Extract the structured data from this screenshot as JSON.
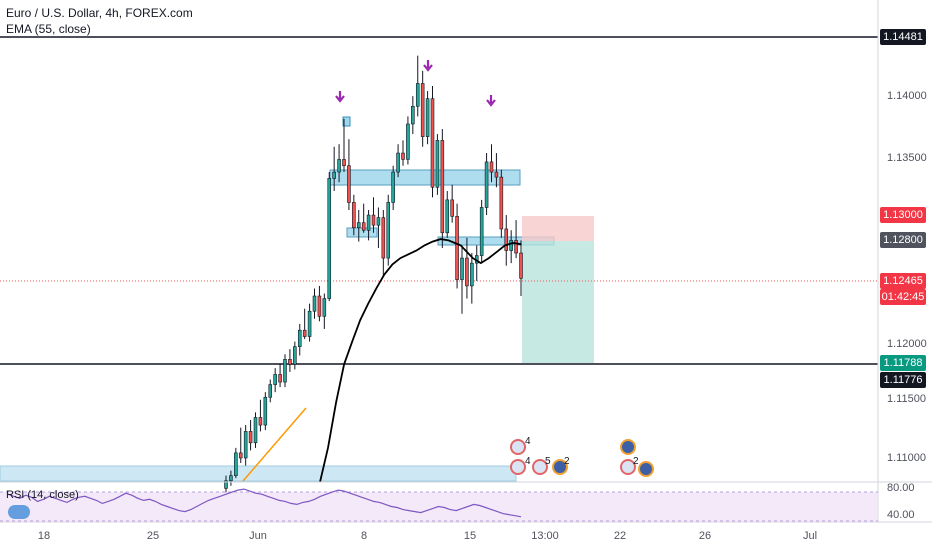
{
  "header": {
    "title": "Euro / U.S. Dollar, 4h, FOREX.com",
    "indicator": "EMA (55, close)"
  },
  "rsi": {
    "label": "RSI (14, close)",
    "axis": [
      "80.00",
      "40.00"
    ],
    "values": [
      62,
      60,
      58,
      61,
      59,
      55,
      57,
      60,
      58,
      56,
      54,
      57,
      59,
      60,
      58,
      56,
      53,
      55,
      57,
      60,
      63,
      61,
      58,
      56,
      57,
      55,
      52,
      50,
      48,
      46,
      45,
      47,
      50,
      53,
      56,
      58,
      60,
      62,
      64,
      66,
      67,
      65,
      63,
      62,
      60,
      58,
      56,
      55,
      53,
      52,
      54,
      55,
      57,
      60,
      62,
      64,
      66,
      65,
      63,
      61,
      59,
      57,
      55,
      54,
      52,
      50,
      49,
      47,
      46,
      45,
      44,
      46,
      48,
      50,
      49,
      47,
      46,
      48,
      50,
      52,
      51,
      49,
      47,
      45,
      43,
      42,
      41,
      40
    ]
  },
  "price_axis": {
    "ticks": [
      "1.14000",
      "1.13500",
      "1.13000",
      "1.12500",
      "1.12000",
      "1.11500",
      "1.11000"
    ],
    "tags": [
      {
        "text": "1.14481",
        "bg": "#131722",
        "fg": "#ffffff"
      },
      {
        "text": "1.13000",
        "bg": "#f23645",
        "fg": "#ffffff"
      },
      {
        "text": "1.12800",
        "bg": "#50535e",
        "fg": "#ffffff"
      },
      {
        "text": "1.12465",
        "bg": "#f23645",
        "fg": "#ffffff"
      },
      {
        "text": "01:42:45",
        "bg": "#f23645",
        "fg": "#ffffff"
      },
      {
        "text": "1.11788",
        "bg": "#089981",
        "fg": "#ffffff"
      },
      {
        "text": "1.11776",
        "bg": "#131722",
        "fg": "#ffffff"
      }
    ]
  },
  "time_axis": {
    "ticks": [
      "18",
      "25",
      "Jun",
      "8",
      "15",
      "13:00",
      "22",
      "26",
      "Jul"
    ]
  },
  "events": {
    "counts": [
      "4",
      "4",
      "5",
      "2",
      "2"
    ]
  },
  "colors": {
    "up": "#26a69a",
    "down": "#ef5350",
    "zone": "#9fd8ec",
    "ema": "#000000",
    "arrow": "#9c27b0",
    "trend": "#ff9800"
  },
  "chart_data": {
    "type": "candlestick",
    "title": "Euro / U.S. Dollar, 4h, FOREX.com",
    "ylim": [
      1.1085,
      1.1466
    ],
    "horizontal_levels": [
      1.14481,
      1.11776
    ],
    "current_price": 1.12465,
    "short_position": {
      "entry": 1.128,
      "stop": 1.13,
      "target": 1.11788
    },
    "ema": [
      [
        0.0,
        1.1085
      ],
      [
        0.04,
        1.1112
      ],
      [
        0.08,
        1.1148
      ],
      [
        0.12,
        1.1178
      ],
      [
        0.16,
        1.1196
      ],
      [
        0.2,
        1.1213
      ],
      [
        0.24,
        1.1226
      ],
      [
        0.28,
        1.1238
      ],
      [
        0.32,
        1.1249
      ],
      [
        0.36,
        1.1257
      ],
      [
        0.4,
        1.1262
      ],
      [
        0.44,
        1.1265
      ],
      [
        0.48,
        1.1268
      ],
      [
        0.52,
        1.1272
      ],
      [
        0.56,
        1.1275
      ],
      [
        0.6,
        1.1277
      ],
      [
        0.64,
        1.1276
      ],
      [
        0.7,
        1.1272
      ],
      [
        0.76,
        1.1262
      ],
      [
        0.8,
        1.1258
      ],
      [
        0.84,
        1.1262
      ],
      [
        0.88,
        1.1267
      ],
      [
        0.92,
        1.1272
      ],
      [
        0.96,
        1.1274
      ],
      [
        1.0,
        1.1273
      ]
    ],
    "candles": [
      [
        1.108,
        1.109,
        1.1076,
        1.1086
      ],
      [
        1.1086,
        1.1094,
        1.1082,
        1.109
      ],
      [
        1.109,
        1.1112,
        1.1088,
        1.1108
      ],
      [
        1.1108,
        1.1128,
        1.11,
        1.1104
      ],
      [
        1.1104,
        1.113,
        1.1098,
        1.1125
      ],
      [
        1.1125,
        1.1134,
        1.111,
        1.1116
      ],
      [
        1.1116,
        1.114,
        1.1112,
        1.1136
      ],
      [
        1.1136,
        1.115,
        1.1125,
        1.113
      ],
      [
        1.113,
        1.1156,
        1.1126,
        1.1152
      ],
      [
        1.1152,
        1.1166,
        1.1148,
        1.1162
      ],
      [
        1.1162,
        1.1175,
        1.1156,
        1.117
      ],
      [
        1.117,
        1.1178,
        1.116,
        1.1164
      ],
      [
        1.1164,
        1.1186,
        1.116,
        1.1182
      ],
      [
        1.1182,
        1.119,
        1.1172,
        1.1178
      ],
      [
        1.1178,
        1.1196,
        1.1174,
        1.1192
      ],
      [
        1.1192,
        1.121,
        1.1185,
        1.1205
      ],
      [
        1.1205,
        1.1222,
        1.1198,
        1.12
      ],
      [
        1.12,
        1.1226,
        1.1196,
        1.122
      ],
      [
        1.122,
        1.1238,
        1.1214,
        1.1232
      ],
      [
        1.1232,
        1.124,
        1.1212,
        1.1216
      ],
      [
        1.1216,
        1.1234,
        1.1206,
        1.123
      ],
      [
        1.123,
        1.133,
        1.1228,
        1.1325
      ],
      [
        1.1325,
        1.135,
        1.1315,
        1.133
      ],
      [
        1.133,
        1.1352,
        1.1322,
        1.134
      ],
      [
        1.134,
        1.1372,
        1.133,
        1.1335
      ],
      [
        1.1335,
        1.1356,
        1.13,
        1.1306
      ],
      [
        1.1306,
        1.1312,
        1.128,
        1.1286
      ],
      [
        1.1286,
        1.13,
        1.1275,
        1.129
      ],
      [
        1.129,
        1.1305,
        1.1282,
        1.1284
      ],
      [
        1.1284,
        1.13,
        1.1276,
        1.1296
      ],
      [
        1.1296,
        1.131,
        1.1282,
        1.1288
      ],
      [
        1.1288,
        1.1302,
        1.127,
        1.1294
      ],
      [
        1.1294,
        1.13,
        1.1248,
        1.1262
      ],
      [
        1.1262,
        1.1312,
        1.1256,
        1.1306
      ],
      [
        1.1306,
        1.1335,
        1.13,
        1.133
      ],
      [
        1.133,
        1.1352,
        1.1326,
        1.1345
      ],
      [
        1.1345,
        1.1355,
        1.1335,
        1.134
      ],
      [
        1.134,
        1.1374,
        1.1336,
        1.1368
      ],
      [
        1.1368,
        1.139,
        1.136,
        1.1382
      ],
      [
        1.1382,
        1.1422,
        1.1374,
        1.14
      ],
      [
        1.14,
        1.141,
        1.135,
        1.1358
      ],
      [
        1.1358,
        1.1394,
        1.1352,
        1.1388
      ],
      [
        1.1388,
        1.1398,
        1.131,
        1.1318
      ],
      [
        1.1318,
        1.136,
        1.1312,
        1.1355
      ],
      [
        1.1355,
        1.1364,
        1.127,
        1.1282
      ],
      [
        1.1282,
        1.1315,
        1.1278,
        1.1308
      ],
      [
        1.1308,
        1.132,
        1.129,
        1.1295
      ],
      [
        1.1295,
        1.1305,
        1.1238,
        1.1245
      ],
      [
        1.1245,
        1.1272,
        1.1218,
        1.1262
      ],
      [
        1.1262,
        1.1278,
        1.123,
        1.124
      ],
      [
        1.124,
        1.1266,
        1.1226,
        1.1258
      ],
      [
        1.1258,
        1.1272,
        1.1244,
        1.1264
      ],
      [
        1.1264,
        1.1308,
        1.1258,
        1.1302
      ],
      [
        1.1302,
        1.1345,
        1.1296,
        1.1338
      ],
      [
        1.1338,
        1.1352,
        1.1322,
        1.133
      ],
      [
        1.133,
        1.1345,
        1.1318,
        1.1326
      ],
      [
        1.1326,
        1.1332,
        1.1278,
        1.1285
      ],
      [
        1.1285,
        1.1296,
        1.1256,
        1.1268
      ],
      [
        1.1268,
        1.1284,
        1.1258,
        1.1276
      ],
      [
        1.1276,
        1.1292,
        1.1262,
        1.1266
      ],
      [
        1.1266,
        1.1276,
        1.1232,
        1.1246
      ]
    ]
  }
}
